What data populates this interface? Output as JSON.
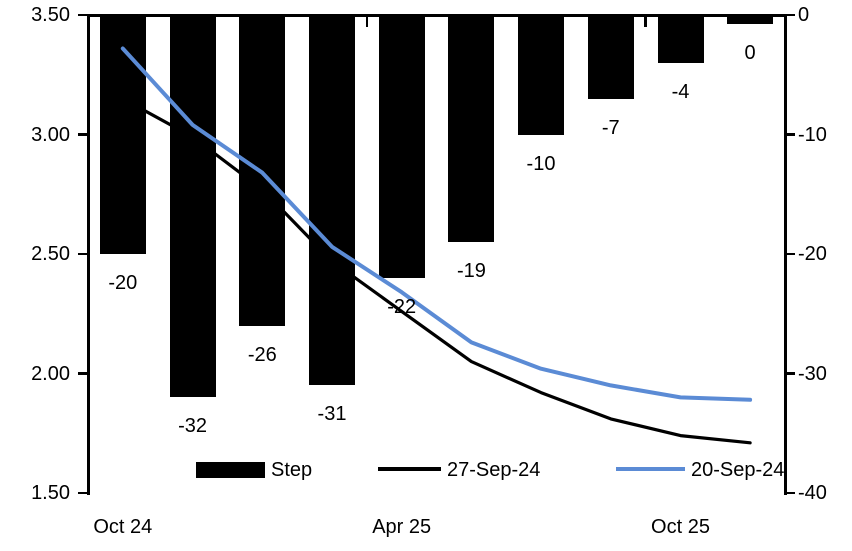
{
  "chart_data": {
    "type": "combo-bar-line",
    "n_slots": 10,
    "bar_series": {
      "name": "Step",
      "axis": "right",
      "unit": "bp",
      "color": "#000000",
      "values": [
        -20,
        -32,
        -26,
        -31,
        -22,
        -19,
        -10,
        -7,
        -4,
        0
      ],
      "labels": [
        "-20",
        "-32",
        "-26",
        "-31",
        "-22",
        "-19",
        "-10",
        "-7",
        "-4",
        "0"
      ]
    },
    "line_series": [
      {
        "name": "27-Sep-24",
        "axis": "left",
        "color": "#000000",
        "stroke_width": 3.2,
        "values": [
          3.15,
          2.99,
          2.77,
          2.47,
          2.26,
          2.05,
          1.92,
          1.81,
          1.74,
          1.71
        ]
      },
      {
        "name": "20-Sep-24",
        "axis": "left",
        "color": "#5B8BD5",
        "stroke_width": 4,
        "values": [
          3.36,
          3.04,
          2.84,
          2.53,
          2.34,
          2.13,
          2.02,
          1.95,
          1.9,
          1.89
        ]
      }
    ],
    "x_axis": {
      "tick_labels": [
        {
          "label": "Oct 24",
          "slot": 0
        },
        {
          "label": "Apr 25",
          "slot": 4
        },
        {
          "label": "Oct 25",
          "slot": 8
        }
      ],
      "boundary_tick_slots": [
        4,
        8
      ]
    },
    "left_axis": {
      "min": 1.5,
      "max": 3.5,
      "ticks": [
        "3.50",
        "3.00",
        "2.50",
        "2.00",
        "1.50"
      ]
    },
    "right_axis": {
      "min": -40,
      "max": 0,
      "ticks": [
        "0",
        "-10",
        "-20",
        "-30",
        "-40"
      ]
    },
    "legend_position": "bottom-inside",
    "grid": false
  }
}
